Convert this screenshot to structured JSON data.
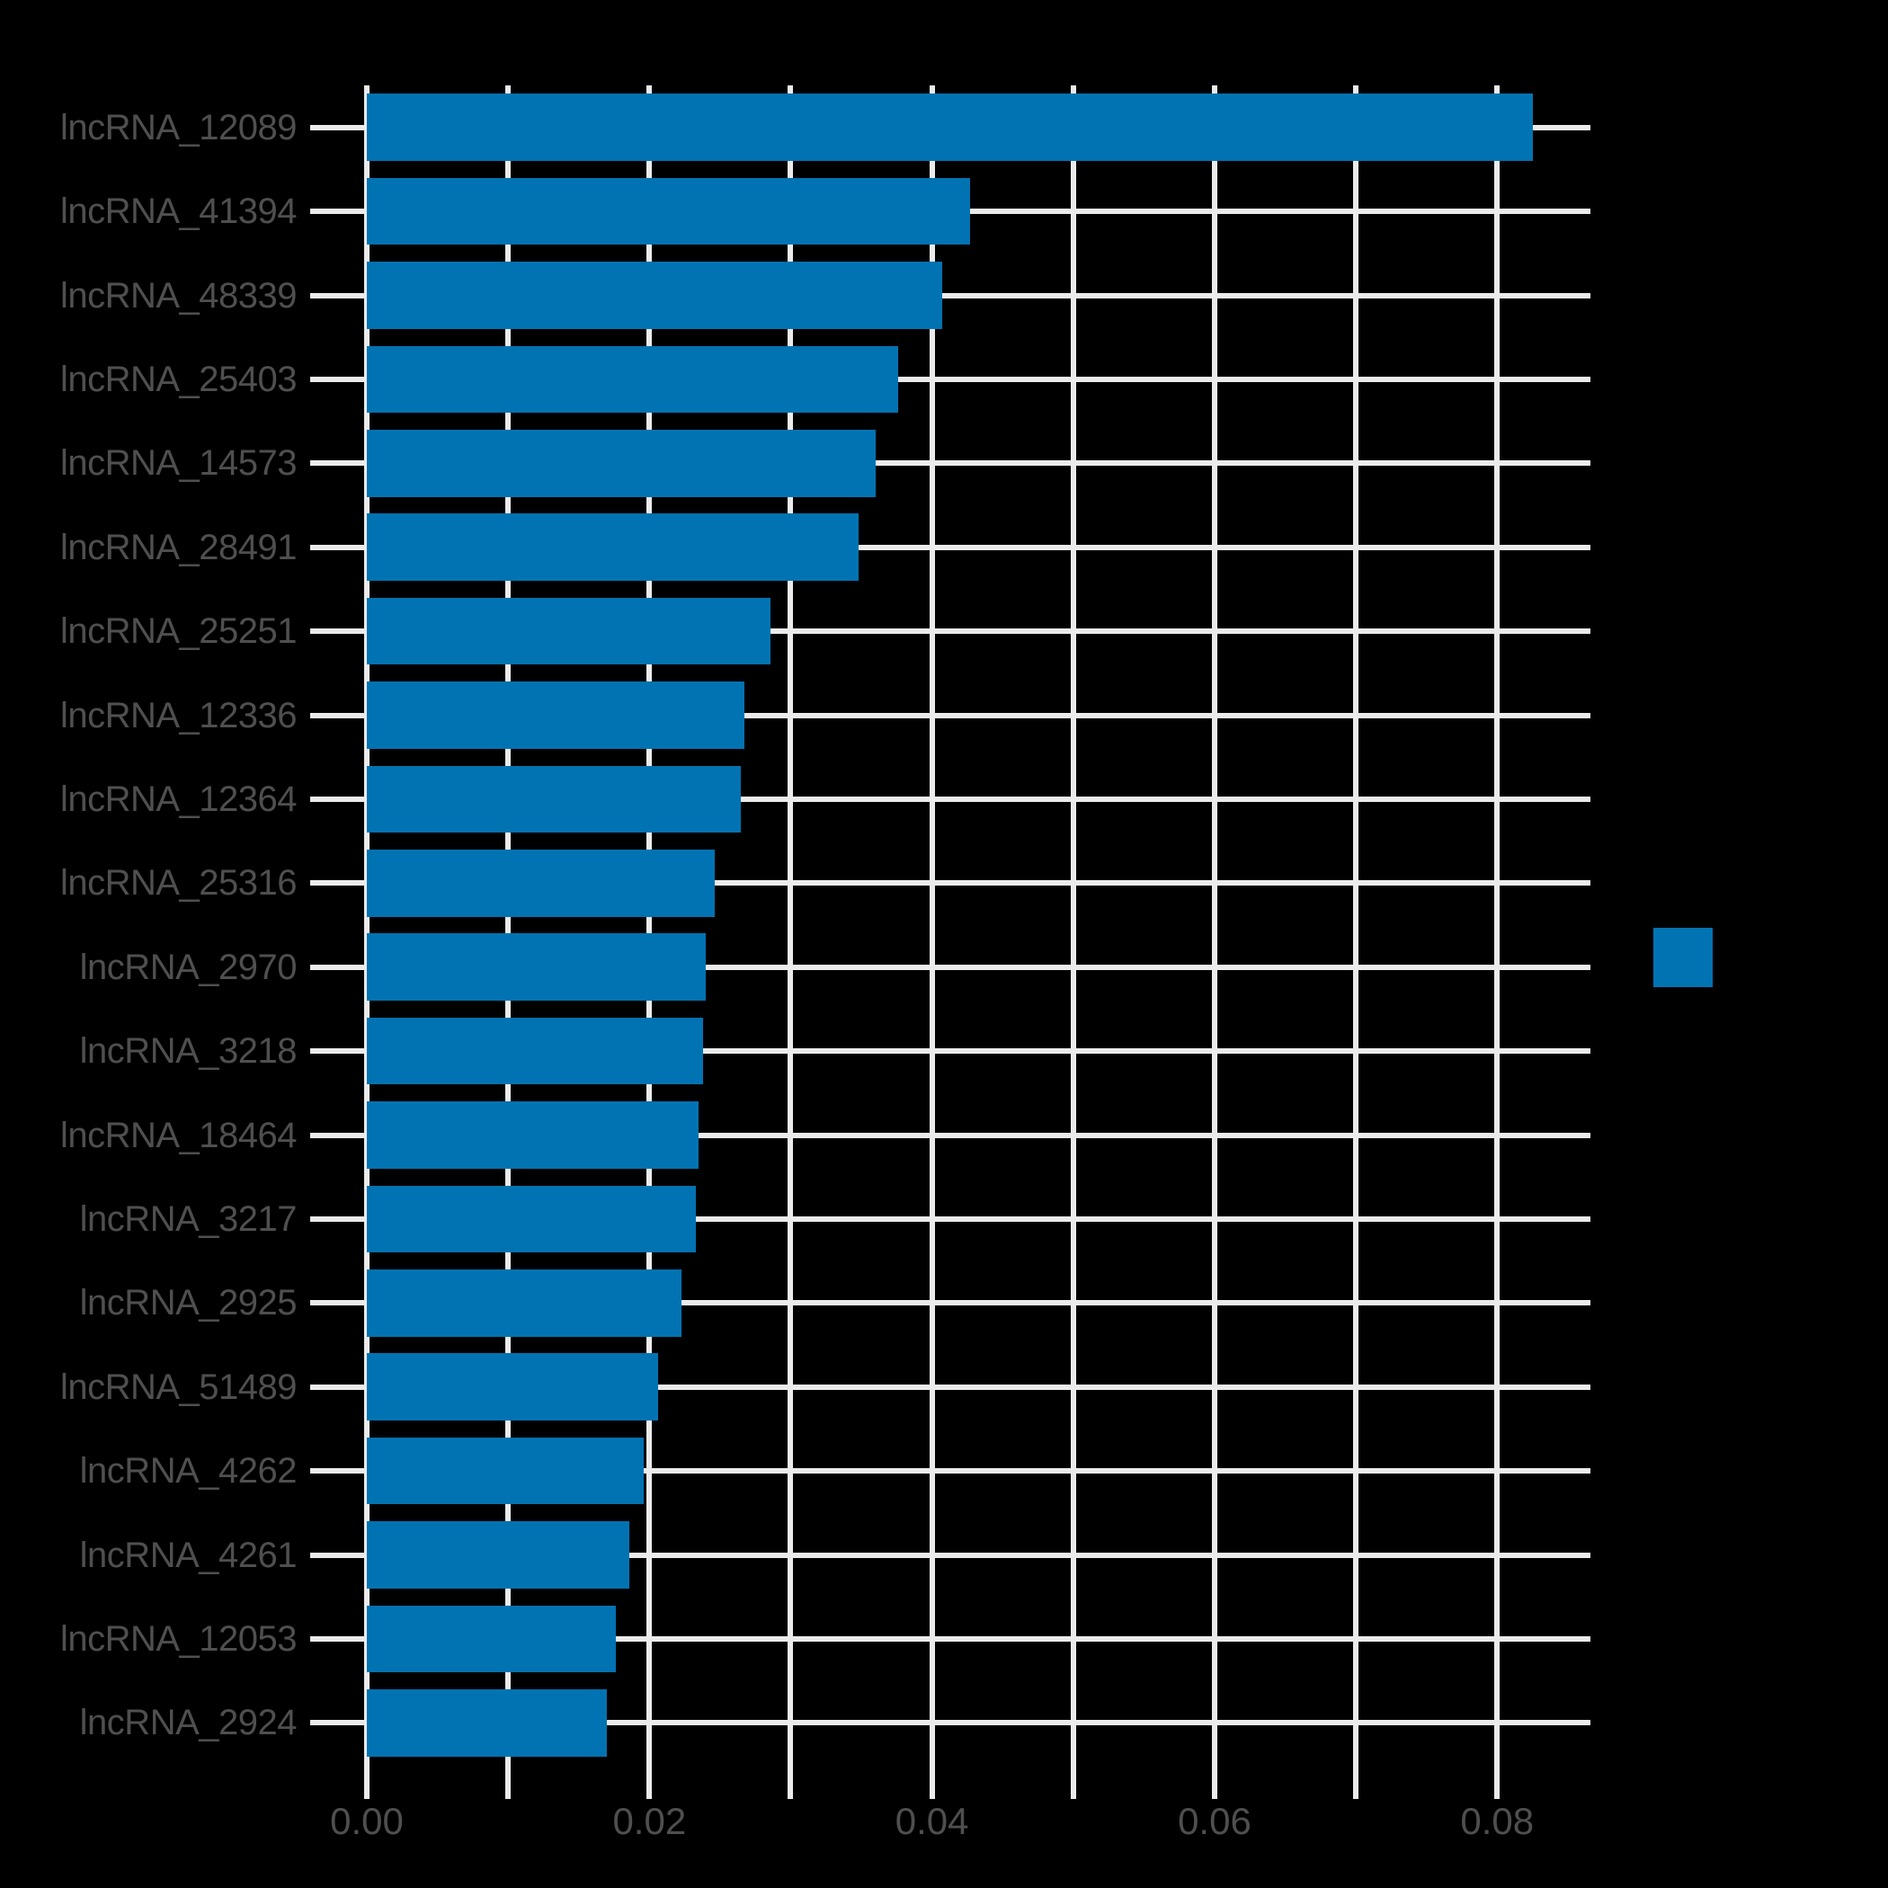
{
  "figure": {
    "background": "#000000",
    "bar_color": "#0173b2",
    "grid_color": "#ebebeb",
    "text_color": "#4f4f4f"
  },
  "legend": {
    "swatch_color": "#0173b2"
  },
  "chart_data": {
    "type": "bar",
    "orientation": "horizontal",
    "title": "",
    "xlabel": "",
    "ylabel": "",
    "grid": "both",
    "background": "black",
    "legend_position": "right-outside",
    "xlim": [
      0,
      0.0866
    ],
    "categories": [
      "lncRNA_12089",
      "lncRNA_41394",
      "lncRNA_48339",
      "lncRNA_25403",
      "lncRNA_14573",
      "lncRNA_28491",
      "lncRNA_25251",
      "lncRNA_12336",
      "lncRNA_12364",
      "lncRNA_25316",
      "lncRNA_2970",
      "lncRNA_3218",
      "lncRNA_18464",
      "lncRNA_3217",
      "lncRNA_2925",
      "lncRNA_51489",
      "lncRNA_4262",
      "lncRNA_4261",
      "lncRNA_12053",
      "lncRNA_2924"
    ],
    "values": [
      0.0825,
      0.0427,
      0.0407,
      0.0376,
      0.036,
      0.0348,
      0.0286,
      0.0267,
      0.0265,
      0.0246,
      0.024,
      0.0238,
      0.0235,
      0.0233,
      0.0223,
      0.0206,
      0.0196,
      0.0186,
      0.0176,
      0.017
    ],
    "x_ticks": [
      {
        "value": 0.0,
        "label": "0.00"
      },
      {
        "value": 0.01,
        "label": ""
      },
      {
        "value": 0.02,
        "label": "0.02"
      },
      {
        "value": 0.03,
        "label": ""
      },
      {
        "value": 0.04,
        "label": "0.04"
      },
      {
        "value": 0.05,
        "label": ""
      },
      {
        "value": 0.06,
        "label": "0.06"
      },
      {
        "value": 0.07,
        "label": ""
      },
      {
        "value": 0.08,
        "label": "0.08"
      }
    ]
  }
}
